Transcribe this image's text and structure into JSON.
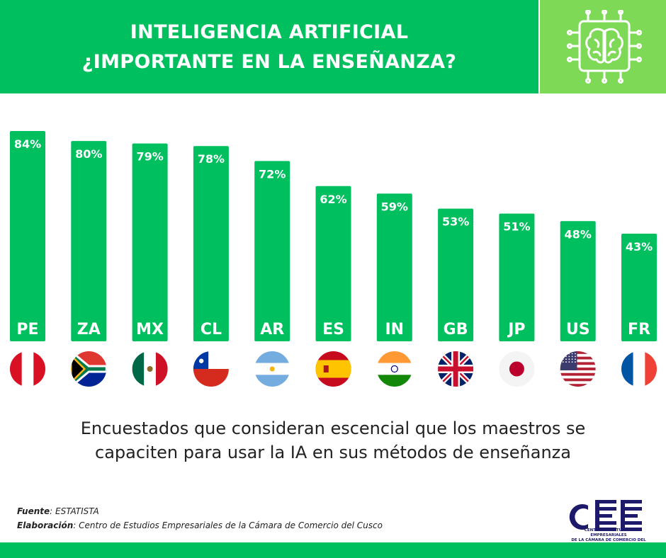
{
  "header": {
    "title_line1": "INTELIGENCIA ARTIFICIAL",
    "title_line2": "¿IMPORTANTE EN LA ENSEÑANZA?",
    "icon": "brain-chip-icon"
  },
  "colors": {
    "brand_green": "#00bf5f",
    "light_green": "#7ed957",
    "logo_navy": "#1d1a6b"
  },
  "chart_data": {
    "type": "bar",
    "categories": [
      "PE",
      "ZA",
      "MX",
      "CL",
      "AR",
      "ES",
      "IN",
      "GB",
      "JP",
      "US",
      "FR"
    ],
    "values": [
      84,
      80,
      79,
      78,
      72,
      62,
      59,
      53,
      51,
      48,
      43
    ],
    "data_labels": [
      "84%",
      "80%",
      "79%",
      "78%",
      "72%",
      "62%",
      "59%",
      "53%",
      "51%",
      "48%",
      "43%"
    ],
    "flags": [
      "peru-flag-icon",
      "south-africa-flag-icon",
      "mexico-flag-icon",
      "chile-flag-icon",
      "argentina-flag-icon",
      "spain-flag-icon",
      "india-flag-icon",
      "uk-flag-icon",
      "japan-flag-icon",
      "usa-flag-icon",
      "france-flag-icon"
    ],
    "unit": "%",
    "grid": false,
    "legend": "none"
  },
  "caption": {
    "line1": "Encuestados que consideran escencial que los maestros se",
    "line2": "capaciten para usar la IA en sus métodos de enseñanza"
  },
  "source": {
    "fuente_label": "Fuente",
    "fuente_value": ": ESTATISTA",
    "elaboracion_label": "Elaboración",
    "elaboracion_value": ": Centro de Estudios Empresariales de la Cámara de Comercio del Cusco"
  },
  "logo": {
    "text_line1": "CENTRO DE ESTUDIOS EMPRESARIALES",
    "text_line2": "DE LA CÁMARA DE COMERCIO DEL CUSCO"
  }
}
